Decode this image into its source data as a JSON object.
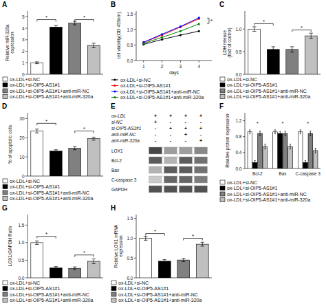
{
  "chart_data": [
    {
      "type": "bar",
      "title": "A",
      "ylabel": "Relative miR-320a\nexpression",
      "categories": [
        null
      ],
      "series": [
        {
          "name": "ox-LDL+si-NC",
          "color": "white",
          "values": [
            1.0
          ],
          "errors": [
            0.08
          ]
        },
        {
          "name": "ox-LDL+si-OIP5-AS1#1",
          "color": "black",
          "values": [
            4.1
          ],
          "errors": [
            0.15
          ]
        },
        {
          "name": "ox-LDL+si-OIP5-AS1#1+anti-miR-NC",
          "color": "#808080",
          "values": [
            4.45
          ],
          "errors": [
            0.15
          ]
        },
        {
          "name": "ox-LDL+si-OIP5-AS1#1+anti-miR-320a",
          "color": "#c0c0c0",
          "values": [
            2.5
          ],
          "errors": [
            0.2
          ]
        }
      ],
      "ylim": [
        0,
        5.5
      ],
      "yticks": [
        0,
        1,
        2,
        3,
        4,
        5
      ],
      "annotations": [
        {
          "text": "*",
          "y": 4.75,
          "from": 0,
          "to": 1
        },
        {
          "text": "*",
          "y": 4.75,
          "from": 2,
          "to": 3
        }
      ],
      "legend": "bottom"
    },
    {
      "type": "line",
      "title": "B",
      "ylabel": "cell viability(OD 450nm)",
      "xlabel": "days",
      "x": [
        1,
        2,
        3,
        4
      ],
      "series": [
        {
          "name": "ox-LDL+si-NC",
          "color": "black",
          "marker": "circle",
          "values": [
            0.52,
            0.68,
            0.82,
            0.95
          ]
        },
        {
          "name": "ox-LDL+si-OIP5-AS1#1",
          "color": "red",
          "marker": "circle",
          "values": [
            0.58,
            0.82,
            1.08,
            1.35
          ]
        },
        {
          "name": "ox-LDL+si-OIP5-AS1#1+anti-miR-NC",
          "color": "blue",
          "marker": "circle",
          "values": [
            0.59,
            0.85,
            1.1,
            1.38
          ]
        },
        {
          "name": "ox-LDL+si-OIP5-AS1#1+anti-miR-320a",
          "color": "green",
          "marker": "circle",
          "values": [
            0.55,
            0.75,
            0.95,
            1.18
          ]
        }
      ],
      "xlim": [
        0.6,
        4.7
      ],
      "xticks": [
        1,
        2,
        3,
        4
      ],
      "ylim": [
        0.0,
        1.6
      ],
      "yticks": [
        {
          "value": 0.0,
          "label": "0.0"
        },
        0.5,
        {
          "value": 1.0,
          "label": "1.0"
        },
        1.5
      ],
      "annotations": [
        {
          "text": "*",
          "x": 4.55,
          "y_from": 1.2,
          "y_to": 1.37
        }
      ],
      "legend": "bottom"
    },
    {
      "type": "bar",
      "title": "C",
      "ylabel": "LDH release\n(fold of control)",
      "categories": [
        null
      ],
      "series": [
        {
          "name": "ox-LDL+si-NC",
          "color": "white",
          "values": [
            1.0
          ],
          "errors": [
            0.05
          ]
        },
        {
          "name": "ox-LDL+si-OIP5-AS1#1",
          "color": "black",
          "values": [
            0.55
          ],
          "errors": [
            0.06
          ]
        },
        {
          "name": "ox-LDL+si-OIP5-AS1#1+anti-miR-NC",
          "color": "#808080",
          "values": [
            0.55
          ],
          "errors": [
            0.06
          ]
        },
        {
          "name": "ox-LDL+si-OIP5-AS1#1+anti-miR-320a",
          "color": "#c0c0c0",
          "values": [
            0.85
          ],
          "errors": [
            0.06
          ]
        }
      ],
      "ylim": [
        0.0,
        1.4
      ],
      "yticks": [
        {
          "value": 0.0,
          "label": "0.0"
        },
        0.5,
        {
          "value": 1.0,
          "label": "1.0"
        }
      ],
      "annotations": [
        {
          "text": "*",
          "y": 1.12,
          "from": 0,
          "to": 1
        },
        {
          "text": "*",
          "y": 0.98,
          "from": 2,
          "to": 3
        }
      ],
      "legend": "bottom"
    },
    {
      "type": "bar",
      "title": "D",
      "ylabel": "% of apoptotic cells",
      "categories": [
        null
      ],
      "series": [
        {
          "name": "ox-LDL+si-NC",
          "color": "white",
          "values": [
            23.5
          ],
          "errors": [
            1.0
          ]
        },
        {
          "name": "ox-LDL+si-OIP5-AS1#1",
          "color": "black",
          "values": [
            13.0
          ],
          "errors": [
            0.7
          ]
        },
        {
          "name": "ox-LDL+si-OIP5-AS1#1+anti-miR-NC",
          "color": "#808080",
          "values": [
            14.5
          ],
          "errors": [
            0.8
          ]
        },
        {
          "name": "ox-LDL+si-OIP5-AS1#1+anti-miR-320a",
          "color": "#c0c0c0",
          "values": [
            19.5
          ],
          "errors": [
            0.8
          ]
        }
      ],
      "ylim": [
        0,
        33
      ],
      "yticks": [
        0,
        10,
        20,
        30
      ],
      "annotations": [
        {
          "text": "*",
          "y": 27.5,
          "from": 0,
          "to": 1
        },
        {
          "text": "*",
          "y": 23.5,
          "from": 2,
          "to": 3
        }
      ],
      "legend": "bottom"
    },
    {
      "type": "heatmap",
      "title": "E",
      "conditions": [
        "ox-LDL",
        "si-NC",
        "si-OIP5-AS1#1",
        "anti-miR-NC",
        "anti-miR-320a"
      ],
      "condition_values": [
        [
          "+",
          "+",
          "+",
          "+"
        ],
        [
          "+",
          "-",
          "-",
          "-"
        ],
        [
          "-",
          "+",
          "+",
          "+"
        ],
        [
          "-",
          "-",
          "+",
          "-"
        ],
        [
          "-",
          "-",
          "-",
          "+"
        ]
      ],
      "rows": [
        "LOX1",
        "Bcl-2",
        "Bax",
        "C-caspase 3",
        "GAPDH"
      ],
      "values": [
        [
          0.85,
          0.45,
          0.45,
          0.55
        ],
        [
          0.75,
          0.35,
          0.75,
          0.65
        ],
        [
          0.35,
          0.75,
          0.75,
          0.65
        ],
        [
          0.25,
          0.7,
          0.7,
          0.6
        ],
        [
          0.8,
          0.8,
          0.8,
          0.8
        ]
      ]
    },
    {
      "type": "bar",
      "title": "F",
      "ylabel": "Relative protein expression",
      "categories": [
        "Bcl-2",
        "Bax",
        "C-caspase 3"
      ],
      "series": [
        {
          "name": "ox-LDL+si-NC",
          "color": "white",
          "values": [
            0.92,
            0.92,
            0.92
          ],
          "errors": [
            0.05,
            0.05,
            0.05
          ]
        },
        {
          "name": "ox-LDL+si-OIP5-AS1#1",
          "color": "black",
          "values": [
            0.15,
            0.88,
            0.15
          ],
          "errors": [
            0.05,
            0.05,
            0.05
          ]
        },
        {
          "name": "ox-LDL+si-OIP5-AS1#1+anti-miR-NC",
          "color": "#808080",
          "values": [
            0.88,
            0.88,
            0.88
          ],
          "errors": [
            0.06,
            0.06,
            0.06
          ]
        },
        {
          "name": "ox-LDL+si-OIP5-AS1#1+anti-miR-320a",
          "color": "#c0c0c0",
          "values": [
            0.55,
            0.55,
            0.45
          ],
          "errors": [
            0.06,
            0.06,
            0.06
          ]
        }
      ],
      "ylim": [
        0,
        1.4
      ],
      "yticks": [
        {
          "value": 0.0,
          "label": "0.0"
        },
        0.4,
        0.8,
        1.2
      ],
      "annotations": [
        {
          "text": "*",
          "y": 1.15,
          "category": 0
        },
        {
          "text": "*",
          "y": 1.15,
          "category": 1
        },
        {
          "text": "*",
          "y": 1.15,
          "category": 2
        }
      ],
      "legend": "bottom"
    },
    {
      "type": "bar",
      "title": "G",
      "ylabel": "LOX1/GAPDH Ratio",
      "categories": [
        null
      ],
      "series": [
        {
          "name": "ox-LDL+si-NC",
          "color": "white",
          "values": [
            1.0
          ],
          "errors": [
            0.05
          ]
        },
        {
          "name": "ox-LDL+si-OIP5-AS1#1",
          "color": "black",
          "values": [
            0.28
          ],
          "errors": [
            0.04
          ]
        },
        {
          "name": "ox-LDL+si-OIP5-AS1#1+anti-miR-NC",
          "color": "#808080",
          "values": [
            0.27
          ],
          "errors": [
            0.04
          ]
        },
        {
          "name": "ox-LDL+si-OIP5-AS1#1+anti-miR-320a",
          "color": "#c0c0c0",
          "values": [
            0.47
          ],
          "errors": [
            0.07
          ]
        }
      ],
      "ylim": [
        0,
        1.8
      ],
      "yticks": [
        {
          "value": 0.0,
          "label": "0.0"
        },
        0.5,
        {
          "value": 1.0,
          "label": "1.0"
        },
        1.5
      ],
      "annotations": [
        {
          "text": "*",
          "y": 1.18,
          "from": 0,
          "to": 1
        },
        {
          "text": "*",
          "y": 0.65,
          "from": 2,
          "to": 3
        }
      ],
      "legend": "bottom"
    },
    {
      "type": "bar",
      "title": "H",
      "ylabel": "Relative LOX1 mRNA\nexpression",
      "categories": [
        null
      ],
      "series": [
        {
          "name": "ox-LDL+si-NC",
          "color": "white",
          "values": [
            1.0
          ],
          "errors": [
            0.05
          ]
        },
        {
          "name": "ox-LDL+si-OIP5-AS1#1",
          "color": "black",
          "values": [
            0.42
          ],
          "errors": [
            0.04
          ]
        },
        {
          "name": "ox-LDL+si-OIP5-AS1#1+anti-miR-NC",
          "color": "#808080",
          "values": [
            0.45
          ],
          "errors": [
            0.04
          ]
        },
        {
          "name": "ox-LDL+si-OIP5-AS1#1+anti-miR-320a",
          "color": "#c0c0c0",
          "values": [
            0.85
          ],
          "errors": [
            0.05
          ]
        }
      ],
      "ylim": [
        0,
        1.6
      ],
      "yticks": [
        {
          "value": 0.0,
          "label": "0.0"
        },
        0.5,
        {
          "value": 1.0,
          "label": "1.0"
        },
        1.5
      ],
      "annotations": [
        {
          "text": "*",
          "y": 1.12,
          "from": 0,
          "to": 1
        },
        {
          "text": "*",
          "y": 1.0,
          "from": 2,
          "to": 3
        }
      ],
      "legend": "bottom"
    }
  ]
}
